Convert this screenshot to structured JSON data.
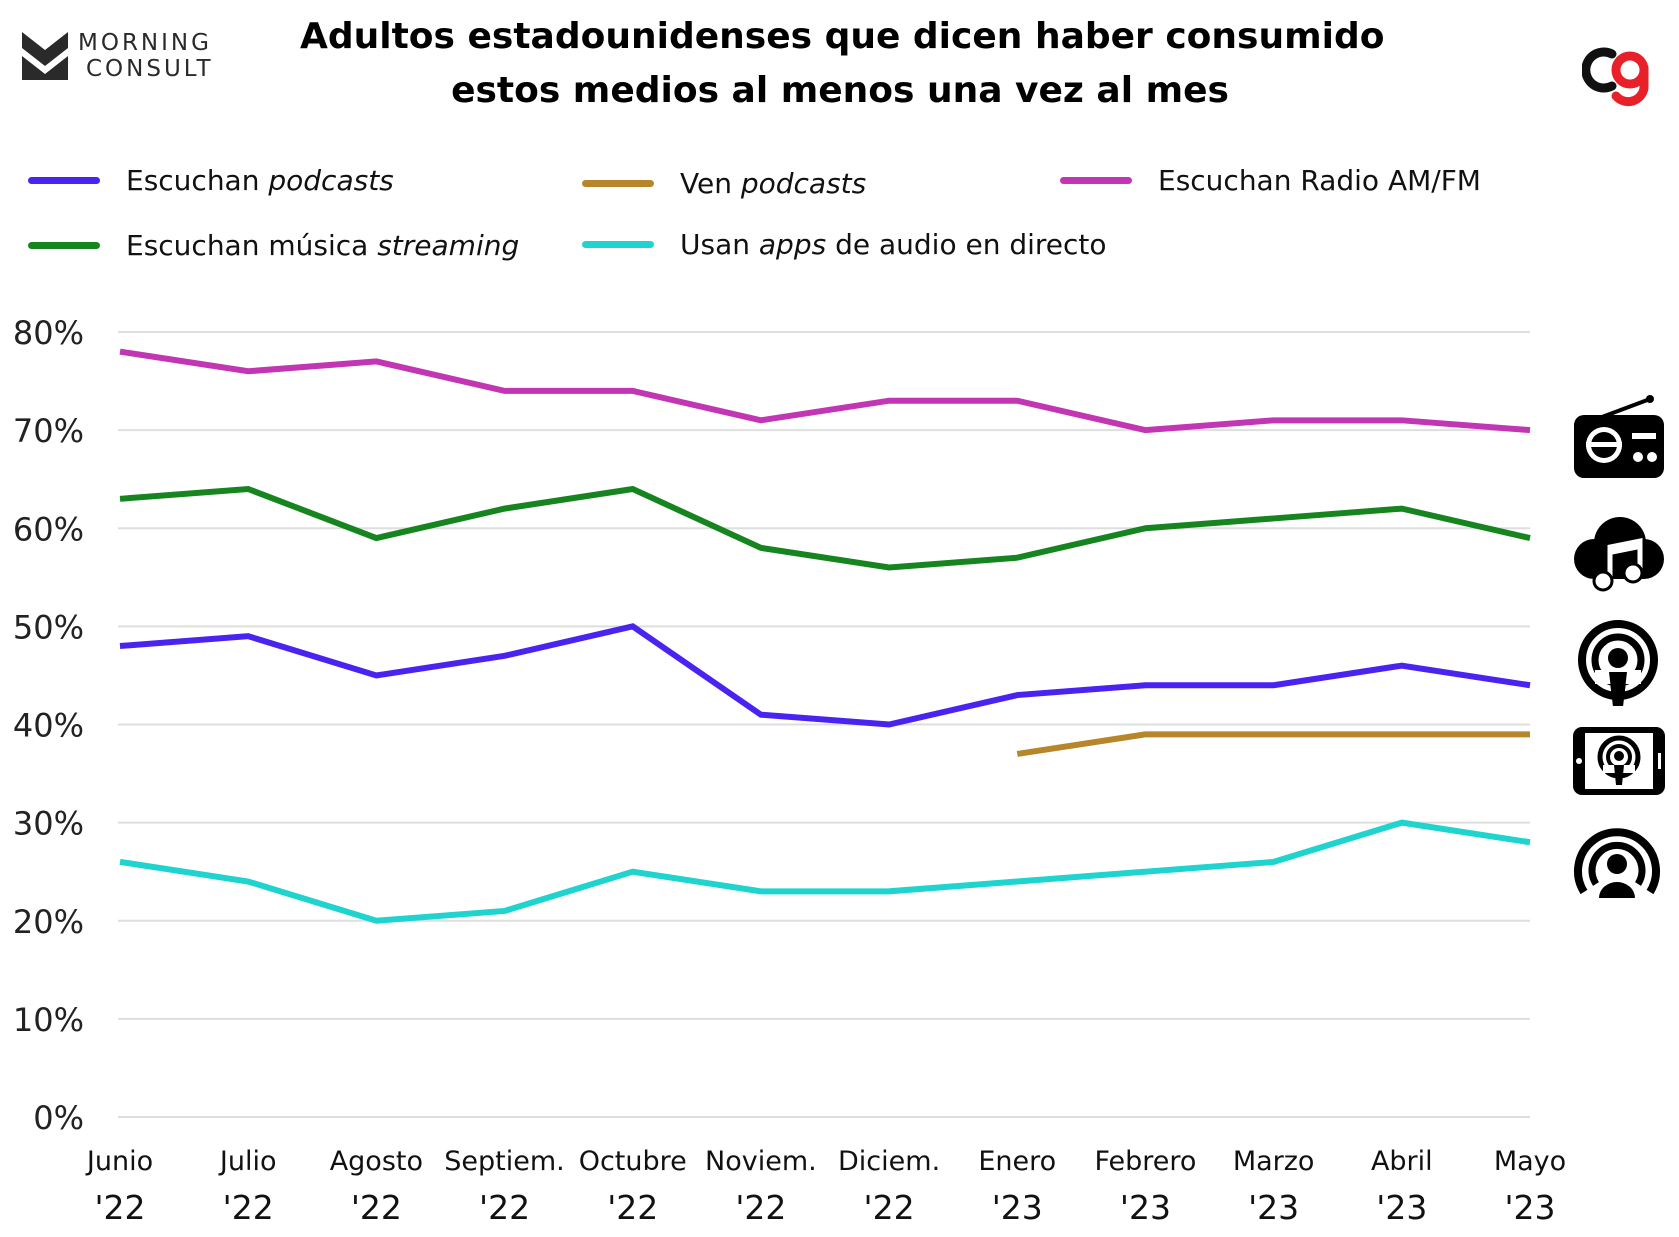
{
  "brand": {
    "left_logo_line1": "MORNING",
    "left_logo_line2": "CONSULT",
    "left_logo_icon": "morning-consult-logo-icon",
    "right_logo_icon": "cg-logo-icon",
    "right_logo_colors": [
      "#111111",
      "#e8202a"
    ]
  },
  "chart_data": {
    "type": "line",
    "title_line1": "Adultos estadounidenses que dicen haber consumido",
    "title_line2": "estos medios al menos una vez al mes",
    "categories": [
      [
        "Junio",
        "'22"
      ],
      [
        "Julio",
        "'22"
      ],
      [
        "Agosto",
        "'22"
      ],
      [
        "Septiem.",
        "'22"
      ],
      [
        "Octubre",
        "'22"
      ],
      [
        "Noviem.",
        "'22"
      ],
      [
        "Diciem.",
        "'22"
      ],
      [
        "Enero",
        "'23"
      ],
      [
        "Febrero",
        "'23"
      ],
      [
        "Marzo",
        "'23"
      ],
      [
        "Abril",
        "'23"
      ],
      [
        "Mayo",
        "'23"
      ]
    ],
    "ylim": [
      0,
      80
    ],
    "yticks": [
      0,
      10,
      20,
      30,
      40,
      50,
      60,
      70,
      80
    ],
    "ytick_labels": [
      "0%",
      "10%",
      "20%",
      "30%",
      "40%",
      "50%",
      "60%",
      "70%",
      "80%"
    ],
    "grid": true,
    "legend_position": "top",
    "series": [
      {
        "name_plain": "Escuchan ",
        "name_italic": "podcasts",
        "name_after": "",
        "color": "#4a23f0",
        "icon": "podcast-microphone-icon",
        "values": [
          48,
          49,
          45,
          47,
          50,
          41,
          40,
          43,
          44,
          44,
          46,
          44
        ]
      },
      {
        "name_plain": "Ven ",
        "name_italic": "podcasts",
        "name_after": "",
        "color": "#b8862a",
        "icon": "phone-podcast-icon",
        "values": [
          null,
          null,
          null,
          null,
          null,
          null,
          null,
          37,
          39,
          39,
          39,
          39
        ]
      },
      {
        "name_plain": "Escuchan Radio AM/FM",
        "name_italic": "",
        "name_after": "",
        "color": "#c236b4",
        "icon": "radio-icon",
        "values": [
          78,
          76,
          77,
          74,
          74,
          71,
          73,
          73,
          70,
          71,
          71,
          70
        ]
      },
      {
        "name_plain": "Escuchan música ",
        "name_italic": "streaming",
        "name_after": "",
        "color": "#17851f",
        "icon": "cloud-music-icon",
        "values": [
          63,
          64,
          59,
          62,
          64,
          58,
          56,
          57,
          60,
          61,
          62,
          59
        ]
      },
      {
        "name_plain": "Usan ",
        "name_italic": "apps",
        "name_after": " de audio en directo",
        "color": "#1fd3cf",
        "icon": "live-audio-icon",
        "values": [
          26,
          24,
          20,
          21,
          25,
          23,
          23,
          24,
          25,
          26,
          30,
          28
        ]
      }
    ]
  }
}
